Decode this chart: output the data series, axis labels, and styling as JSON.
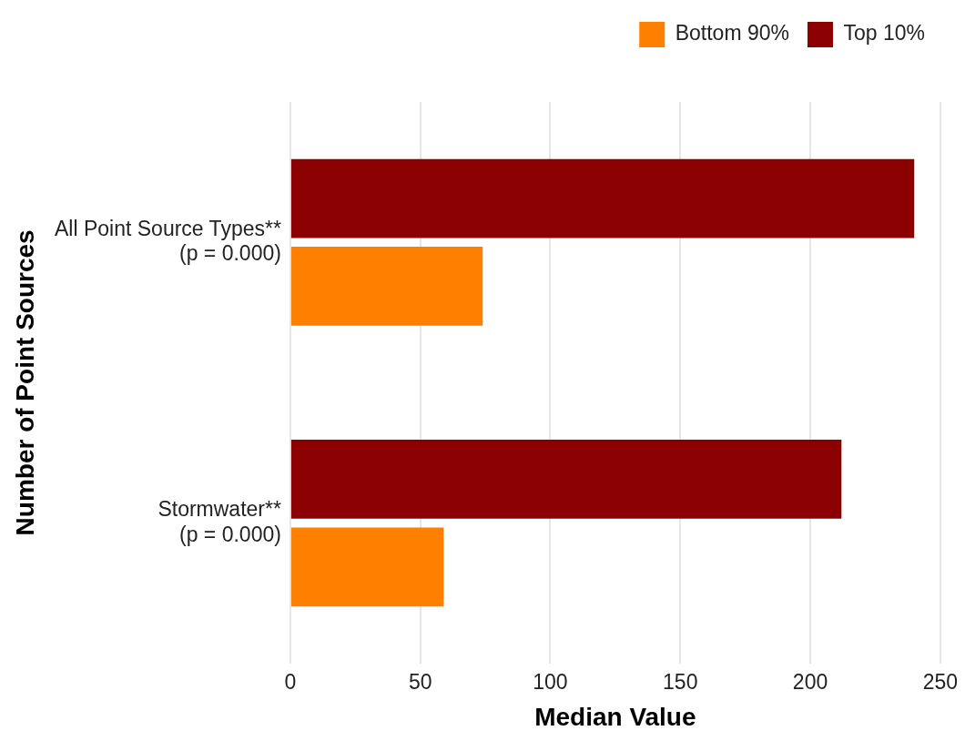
{
  "chart_data": {
    "type": "bar",
    "orientation": "horizontal",
    "xlabel": "Median Value",
    "ylabel": "Number of Point Sources",
    "categories": [
      "All Point Source Types**\n(p = 0.000)",
      "Stormwater**\n(p = 0.000)"
    ],
    "series": [
      {
        "name": "Bottom 90%",
        "color": "#ff8000",
        "values": [
          74,
          59
        ]
      },
      {
        "name": "Top 10%",
        "color": "#8b0000",
        "values": [
          240,
          212
        ]
      }
    ],
    "xlim": [
      0,
      250
    ],
    "xticks": [
      0,
      50,
      100,
      150,
      200,
      250
    ],
    "grid": "x",
    "legend": "top right"
  }
}
